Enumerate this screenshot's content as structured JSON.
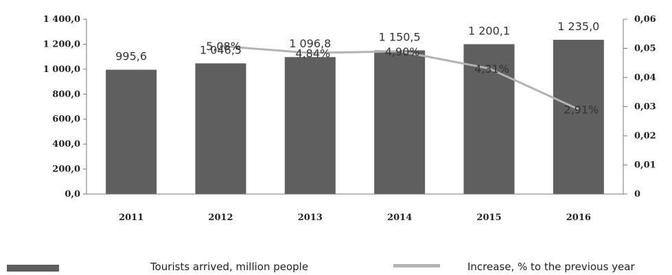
{
  "chart_data": {
    "type": "bar+line",
    "categories": [
      "2011",
      "2012",
      "2013",
      "2014",
      "2015",
      "2016"
    ],
    "series": [
      {
        "name": "Tourists arrived, million people",
        "type": "bar",
        "axis": "left",
        "values": [
          995.6,
          1046.5,
          1096.8,
          1150.5,
          1200.1,
          1235.0
        ],
        "labels": [
          "995,6",
          "1 046,5",
          "1 096,8",
          "1 150,5",
          "1 200,1",
          "1 235,0"
        ],
        "color": "#5f5f5f"
      },
      {
        "name": "Increase, % to the previous year",
        "type": "line",
        "axis": "right",
        "values": [
          null,
          0.0508,
          0.0484,
          0.049,
          0.0431,
          0.0291
        ],
        "labels": [
          "",
          "5,08%",
          "4,84%",
          "4,90%",
          "4,31%",
          "2,91%"
        ],
        "color": "#b3b3b3"
      }
    ],
    "left_axis": {
      "range": [
        0,
        1400
      ],
      "ticks": [
        0,
        200,
        400,
        600,
        800,
        1000,
        1200,
        1400
      ],
      "tick_labels": [
        "0,0",
        "200,0",
        "400,0",
        "600,0",
        "800,0",
        "1 000,0",
        "1 200,0",
        "1 400,0"
      ]
    },
    "right_axis": {
      "range": [
        0,
        0.06
      ],
      "ticks": [
        0,
        0.01,
        0.02,
        0.03,
        0.04,
        0.05,
        0.06
      ],
      "tick_labels": [
        "0",
        "0,01",
        "0,02",
        "0,03",
        "0,04",
        "0,05",
        "0,06"
      ]
    },
    "grid": false,
    "legend_position": "bottom"
  }
}
